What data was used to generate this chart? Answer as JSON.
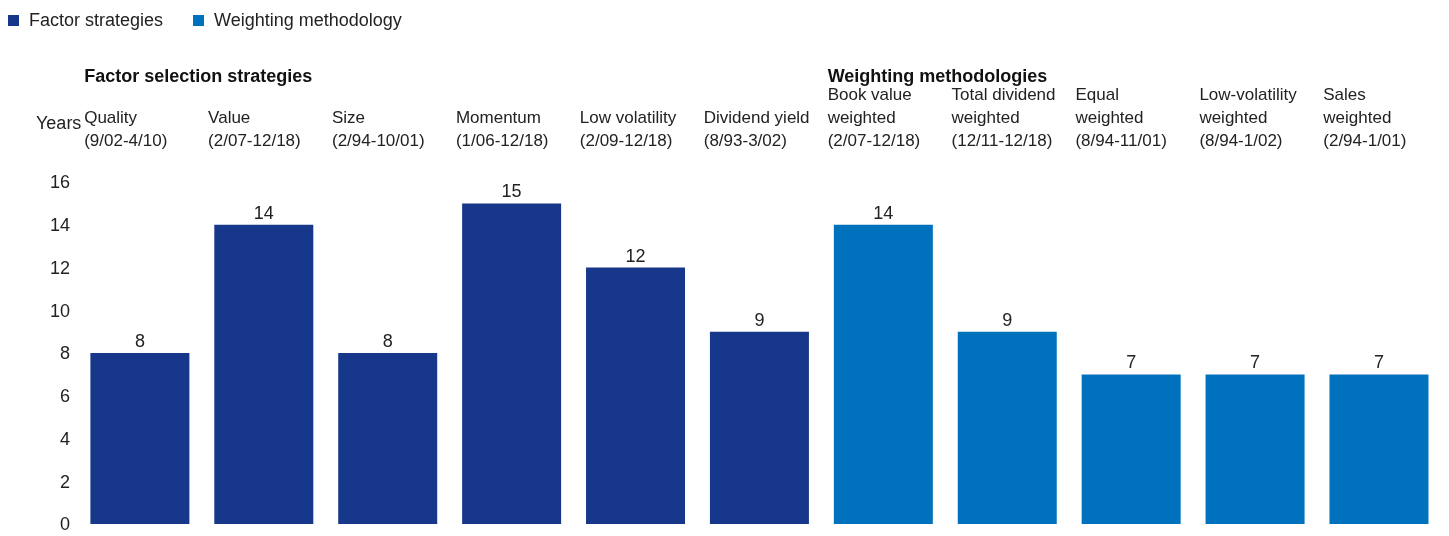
{
  "chart_data": {
    "type": "bar",
    "stacked": true,
    "ylabel": "Years",
    "categories": [
      "Quality\n(9/02-4/10)",
      "Value\n(2/07-12/18)",
      "Size\n(2/94-10/01)",
      "Momentum\n(1/06-12/18)",
      "Low volatility\n(2/09-12/18)",
      "Dividend yield\n(8/93-3/02)",
      "Book value\nweighted\n(2/07-12/18)",
      "Total dividend\nweighted\n(12/11-12/18)",
      "Equal\nweighted\n(8/94-11/01)",
      "Low-volatility\nweighted\n(8/94-1/02)",
      "Sales\nweighted\n(2/94-1/01)"
    ],
    "series": [
      {
        "name": "Factor strategies",
        "color": "#16378a",
        "values": [
          8,
          14,
          8,
          15,
          12,
          9,
          null,
          null,
          null,
          null,
          null
        ]
      },
      {
        "name": "Weighting methodology",
        "color": "#0071bc",
        "values": [
          null,
          null,
          null,
          null,
          null,
          null,
          14,
          9,
          7,
          7,
          7
        ]
      }
    ],
    "annotations": [
      "Factor selection strategies",
      "Weighting methodologies"
    ],
    "ylim": [
      0,
      16
    ],
    "yticks": [
      0,
      2,
      4,
      6,
      8,
      10,
      12,
      14,
      16
    ],
    "grid": false,
    "legend": "top left",
    "data_labels": true
  }
}
